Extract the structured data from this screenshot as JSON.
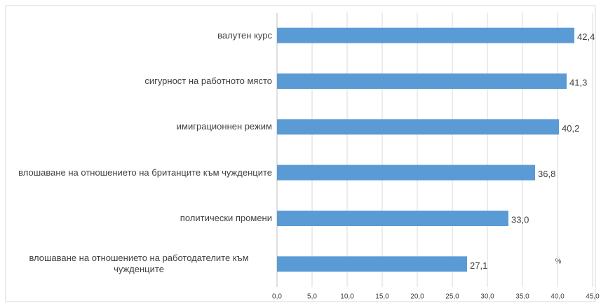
{
  "chart_data": {
    "type": "bar",
    "orientation": "horizontal",
    "categories": [
      "валутен курс",
      "сигурност на работното място",
      "имиграционнен режим",
      "влошаване на отношението на британците  към чужденците",
      "политически промени",
      "влошаване на отношението на работодателите към чужденците"
    ],
    "values": [
      42.4,
      41.3,
      40.2,
      36.8,
      33.0,
      27.1
    ],
    "value_labels": [
      "42,4",
      "41,3",
      "40,2",
      "36,8",
      "33,0",
      "27,1"
    ],
    "color": "#5b9bd5",
    "xlim": [
      0,
      45
    ],
    "xticks": [
      {
        "value": 0,
        "label": "0,0"
      },
      {
        "value": 5,
        "label": "5,0"
      },
      {
        "value": 10,
        "label": "10,0"
      },
      {
        "value": 15,
        "label": "15,0"
      },
      {
        "value": 20,
        "label": "20,0"
      },
      {
        "value": 25,
        "label": "25,0"
      },
      {
        "value": 30,
        "label": "30,0"
      },
      {
        "value": 35,
        "label": "35,0"
      },
      {
        "value": 40,
        "label": "40,0"
      },
      {
        "value": 45,
        "label": "45,0"
      }
    ],
    "grid": true,
    "annotation": "%"
  }
}
